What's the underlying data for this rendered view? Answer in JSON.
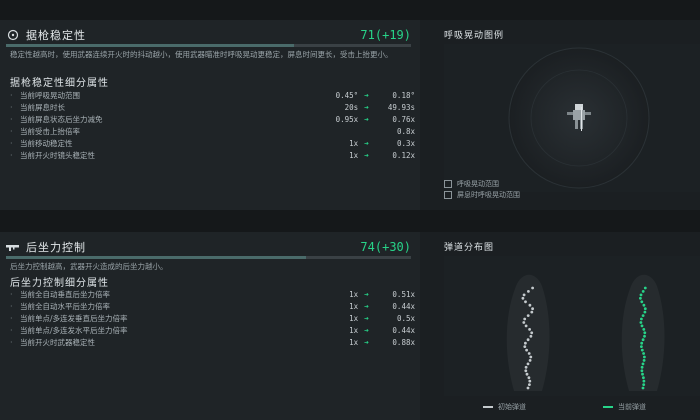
{
  "stability": {
    "title": "据枪稳定性",
    "score": "71(+19)",
    "progress": 0.71,
    "description": "稳定性越高时，使用武器连续开火时的抖动越小，使用武器瞄准时呼吸晃动更稳定，屏息时间更长，受击上抬更小。",
    "subtitle": "据枪稳定性细分属性",
    "rows": [
      {
        "name": "当前呼吸晃动范围",
        "from": "0.45°",
        "to": "0.18°"
      },
      {
        "name": "当前屏息时长",
        "from": "20s",
        "to": "49.93s"
      },
      {
        "name": "当前屏息状态后坐力减免",
        "from": "0.95x",
        "to": "0.76x"
      },
      {
        "name": "当前受击上抬倍率",
        "from": "",
        "to": "0.8x"
      },
      {
        "name": "当前移动稳定性",
        "from": "1x",
        "to": "0.3x"
      },
      {
        "name": "当前开火时镜头稳定性",
        "from": "1x",
        "to": "0.12x"
      }
    ],
    "chart_title": "呼吸晃动图例",
    "legend": [
      "呼吸晃动范围",
      "屏息时呼吸晃动范围"
    ]
  },
  "recoil": {
    "title": "后坐力控制",
    "score": "74(+30)",
    "progress": 0.74,
    "description": "后坐力控制越高，武器开火造成的后坐力越小。",
    "subtitle": "后坐力控制细分属性",
    "rows": [
      {
        "name": "当前全自动垂直后坐力倍率",
        "from": "1x",
        "to": "0.51x"
      },
      {
        "name": "当前全自动水平后坐力倍率",
        "from": "1x",
        "to": "0.44x"
      },
      {
        "name": "当前单点/多连发垂直后坐力倍率",
        "from": "1x",
        "to": "0.5x"
      },
      {
        "name": "当前单点/多连发水平后坐力倍率",
        "from": "1x",
        "to": "0.44x"
      },
      {
        "name": "当前开火时武器稳定性",
        "from": "1x",
        "to": "0.88x"
      }
    ],
    "chart_title": "弹道分布图",
    "legend_start": "初始弹道",
    "legend_current": "当前弹道"
  },
  "colors": {
    "accent": "#27d489",
    "start": "#c4cacd"
  },
  "icons": {
    "stability": "crosshair-icon",
    "recoil": "rifle-icon",
    "arrow": "arrow-right-icon"
  }
}
